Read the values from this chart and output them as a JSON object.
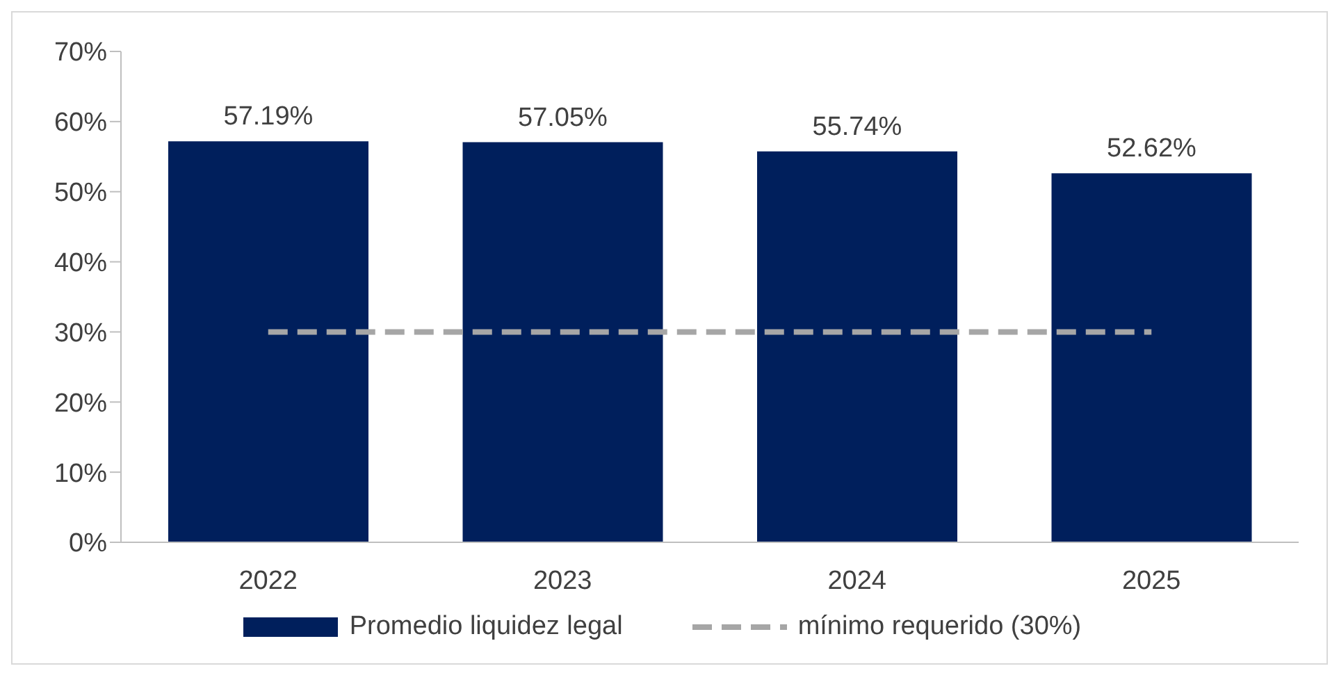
{
  "chart_data": {
    "type": "bar",
    "categories": [
      "2022",
      "2023",
      "2024",
      "2025"
    ],
    "series": [
      {
        "name": "Promedio liquidez legal",
        "color": "#001f5c",
        "values": [
          57.19,
          57.05,
          55.74,
          52.62
        ],
        "value_labels": [
          "57.19%",
          "57.05%",
          "55.74%",
          "52.62%"
        ]
      },
      {
        "name": "mínimo requerido (30%)",
        "type": "line",
        "color": "#a6a6a6",
        "line_style": "dashed",
        "marker": "none",
        "values": [
          30,
          30,
          30,
          30
        ]
      }
    ],
    "ylim": [
      0,
      70
    ],
    "yticks": [
      {
        "value": 0,
        "label": "0%"
      },
      {
        "value": 10,
        "label": "10%"
      },
      {
        "value": 20,
        "label": "20%"
      },
      {
        "value": 30,
        "label": "30%"
      },
      {
        "value": 40,
        "label": "40%"
      },
      {
        "value": 50,
        "label": "50%"
      },
      {
        "value": 60,
        "label": "60%"
      },
      {
        "value": 70,
        "label": "70%"
      }
    ],
    "grid": false,
    "legend": "bottom"
  }
}
